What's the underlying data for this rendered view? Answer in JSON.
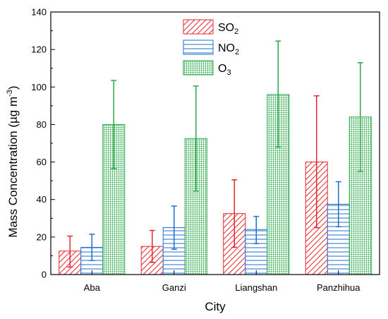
{
  "chart_data": {
    "type": "bar",
    "xlabel": "City",
    "ylabel": "Mass Concentration (µg m",
    "ylabel_sup": "-3",
    "ylabel_tail": ")",
    "categories": [
      "Aba",
      "Ganzi",
      "Liangshan",
      "Panzhihua"
    ],
    "ylim": [
      0,
      140
    ],
    "yticks": [
      0,
      20,
      40,
      60,
      80,
      100,
      120,
      140
    ],
    "series": [
      {
        "name": "SO",
        "sub": "2",
        "color": "#e8262e",
        "pattern": "diagonal",
        "values": [
          12.5,
          15,
          32.5,
          60
        ],
        "err_low": [
          4,
          6.5,
          14.5,
          25
        ],
        "err_high": [
          20.5,
          23.5,
          50.5,
          95.3
        ]
      },
      {
        "name": "NO",
        "sub": "2",
        "color": "#1f6fd0",
        "pattern": "horizontal",
        "values": [
          14.5,
          25,
          24,
          37.5
        ],
        "err_low": [
          7.5,
          13.5,
          16.5,
          25.5
        ],
        "err_high": [
          21.5,
          36.5,
          31,
          49.5
        ]
      },
      {
        "name": "O",
        "sub": "3",
        "color": "#2aa84a",
        "pattern": "grid",
        "values": [
          80,
          72.5,
          96,
          84
        ],
        "err_low": [
          56.5,
          44.5,
          68,
          55
        ],
        "err_high": [
          103.5,
          100.5,
          124.5,
          113
        ]
      }
    ],
    "legend_position": "top-center",
    "grid": false
  }
}
